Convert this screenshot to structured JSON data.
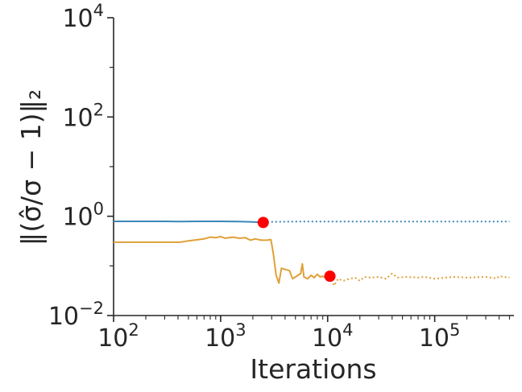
{
  "chart_data": {
    "type": "line",
    "title": "",
    "xlabel": "Iterations",
    "ylabel": "‖(σ̂/σ − 1)‖₂",
    "xscale": "log",
    "yscale": "log",
    "xlim": [
      100,
      550000
    ],
    "ylim": [
      0.01,
      10000
    ],
    "x_ticks": [
      {
        "base": "10",
        "exp": "2",
        "value": 100
      },
      {
        "base": "10",
        "exp": "3",
        "value": 1000
      },
      {
        "base": "10",
        "exp": "4",
        "value": 10000
      },
      {
        "base": "10",
        "exp": "5",
        "value": 100000
      }
    ],
    "y_ticks": [
      {
        "base": "10",
        "exp": "−2",
        "value": 0.01
      },
      {
        "base": "10",
        "exp": "0",
        "value": 1
      },
      {
        "base": "10",
        "exp": "2",
        "value": 100
      },
      {
        "base": "10",
        "exp": "4",
        "value": 10000
      }
    ],
    "grid": false,
    "legend": "none",
    "series": [
      {
        "color": "#3a87b9",
        "solid": [
          [
            100,
            0.79
          ],
          [
            300,
            0.79
          ],
          [
            420,
            0.78
          ],
          [
            600,
            0.79
          ],
          [
            1000,
            0.79
          ],
          [
            1500,
            0.78
          ],
          [
            2000,
            0.77
          ],
          [
            2500,
            0.75
          ]
        ],
        "dotted": [
          [
            2500,
            0.77
          ],
          [
            5000,
            0.78
          ],
          [
            20000,
            0.78
          ],
          [
            100000,
            0.78
          ],
          [
            500000,
            0.78
          ]
        ],
        "marker": [
          2500,
          0.75
        ]
      },
      {
        "color": "#e0a038",
        "solid": [
          [
            100,
            0.3
          ],
          [
            250,
            0.3
          ],
          [
            420,
            0.3
          ],
          [
            500,
            0.32
          ],
          [
            700,
            0.35
          ],
          [
            800,
            0.38
          ],
          [
            900,
            0.37
          ],
          [
            1000,
            0.39
          ],
          [
            1100,
            0.36
          ],
          [
            1300,
            0.38
          ],
          [
            1500,
            0.36
          ],
          [
            1700,
            0.37
          ],
          [
            1900,
            0.33
          ],
          [
            2100,
            0.35
          ],
          [
            2400,
            0.33
          ],
          [
            2700,
            0.33
          ],
          [
            2950,
            0.34
          ],
          [
            3100,
            0.18
          ],
          [
            3300,
            0.065
          ],
          [
            3500,
            0.045
          ],
          [
            3700,
            0.09
          ],
          [
            4000,
            0.085
          ],
          [
            4400,
            0.08
          ],
          [
            4700,
            0.055
          ],
          [
            5000,
            0.06
          ],
          [
            5300,
            0.065
          ],
          [
            5600,
            0.07
          ],
          [
            5800,
            0.11
          ],
          [
            6000,
            0.06
          ],
          [
            6500,
            0.055
          ],
          [
            7000,
            0.065
          ],
          [
            7500,
            0.058
          ],
          [
            8000,
            0.068
          ],
          [
            8500,
            0.06
          ],
          [
            9000,
            0.062
          ],
          [
            9500,
            0.058
          ],
          [
            10000,
            0.06
          ],
          [
            10500,
            0.062
          ]
        ],
        "dotted": [
          [
            10500,
            0.062
          ],
          [
            11500,
            0.04
          ],
          [
            12500,
            0.055
          ],
          [
            14000,
            0.05
          ],
          [
            16000,
            0.055
          ],
          [
            18000,
            0.058
          ],
          [
            20000,
            0.05
          ],
          [
            22000,
            0.06
          ],
          [
            25000,
            0.058
          ],
          [
            30000,
            0.06
          ],
          [
            35000,
            0.055
          ],
          [
            40000,
            0.07
          ],
          [
            45000,
            0.058
          ],
          [
            55000,
            0.06
          ],
          [
            70000,
            0.058
          ],
          [
            80000,
            0.06
          ],
          [
            100000,
            0.055
          ],
          [
            150000,
            0.06
          ],
          [
            200000,
            0.058
          ],
          [
            300000,
            0.06
          ],
          [
            380000,
            0.056
          ],
          [
            400000,
            0.062
          ],
          [
            500000,
            0.058
          ]
        ],
        "marker": [
          10500,
          0.062
        ]
      }
    ]
  }
}
